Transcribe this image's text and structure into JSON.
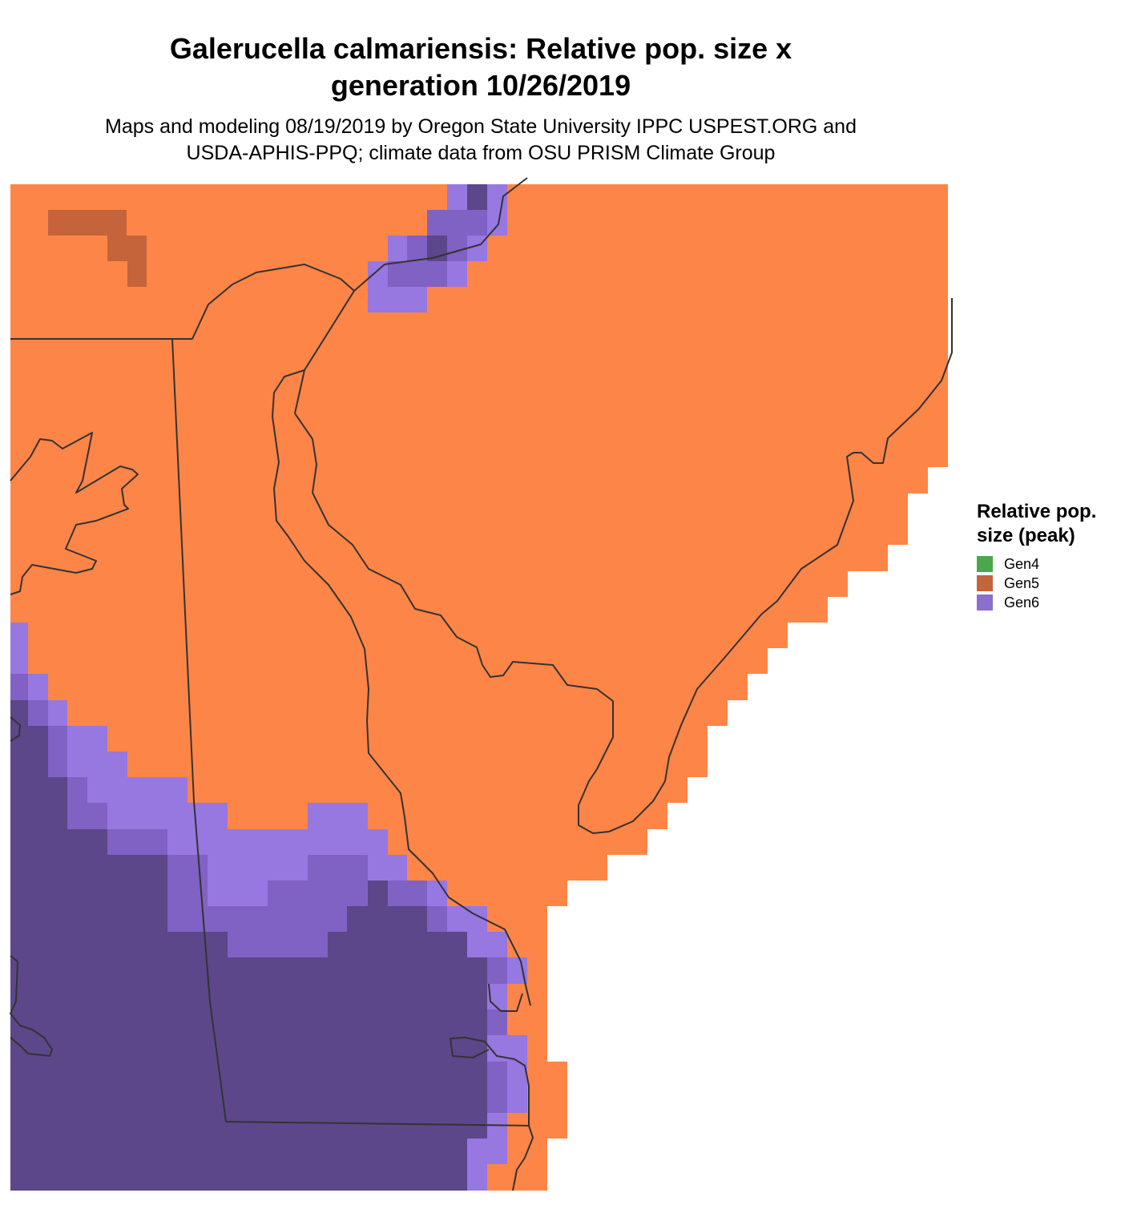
{
  "header": {
    "title_line1": "Galerucella calmariensis: Relative pop. size x",
    "title_line2": "generation 10/26/2019",
    "subtitle_line1": "Maps and modeling 08/19/2019 by Oregon State University IPPC USPEST.ORG and",
    "subtitle_line2": "USDA-APHIS-PPQ; climate data from OSU PRISM Climate Group"
  },
  "legend": {
    "title_line1": "Relative pop.",
    "title_line2": "size (peak)",
    "items": [
      {
        "label": "Gen4",
        "color": "#4aa84a"
      },
      {
        "label": "Gen5",
        "color": "#c5643a"
      },
      {
        "label": "Gen6",
        "color": "#8a6fcc"
      }
    ]
  },
  "colors": {
    "orange": "#fd8547",
    "gen5": "#c5643a",
    "light_purple": "#9777e0",
    "mid_purple": "#8061c4",
    "dark_purple": "#5b4789",
    "darkest_purple": "#4f3f7a",
    "border": "#333333"
  }
}
